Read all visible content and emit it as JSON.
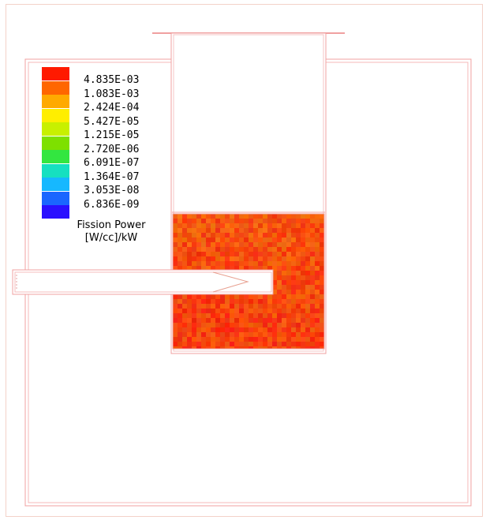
{
  "legend": {
    "entries": [
      {
        "label": "4.835E-03",
        "color": "#ff1a00"
      },
      {
        "label": "1.083E-03",
        "color": "#ff6600"
      },
      {
        "label": "2.424E-04",
        "color": "#ffaa00"
      },
      {
        "label": "5.427E-05",
        "color": "#ffee00"
      },
      {
        "label": "1.215E-05",
        "color": "#c8f000"
      },
      {
        "label": "2.720E-06",
        "color": "#7ee000"
      },
      {
        "label": "6.091E-07",
        "color": "#33e640"
      },
      {
        "label": "1.364E-07",
        "color": "#16e0c0"
      },
      {
        "label": "3.053E-08",
        "color": "#16b8ff"
      },
      {
        "label": "6.836E-09",
        "color": "#1a66ff"
      },
      {
        "label": "",
        "color": "#2a10ff"
      }
    ],
    "title_line1": "Fission Power",
    "title_line2": "[W/cc]/kW"
  },
  "colors": {
    "outline": "#f0a0a0",
    "fuel_base": "#f03a10"
  }
}
